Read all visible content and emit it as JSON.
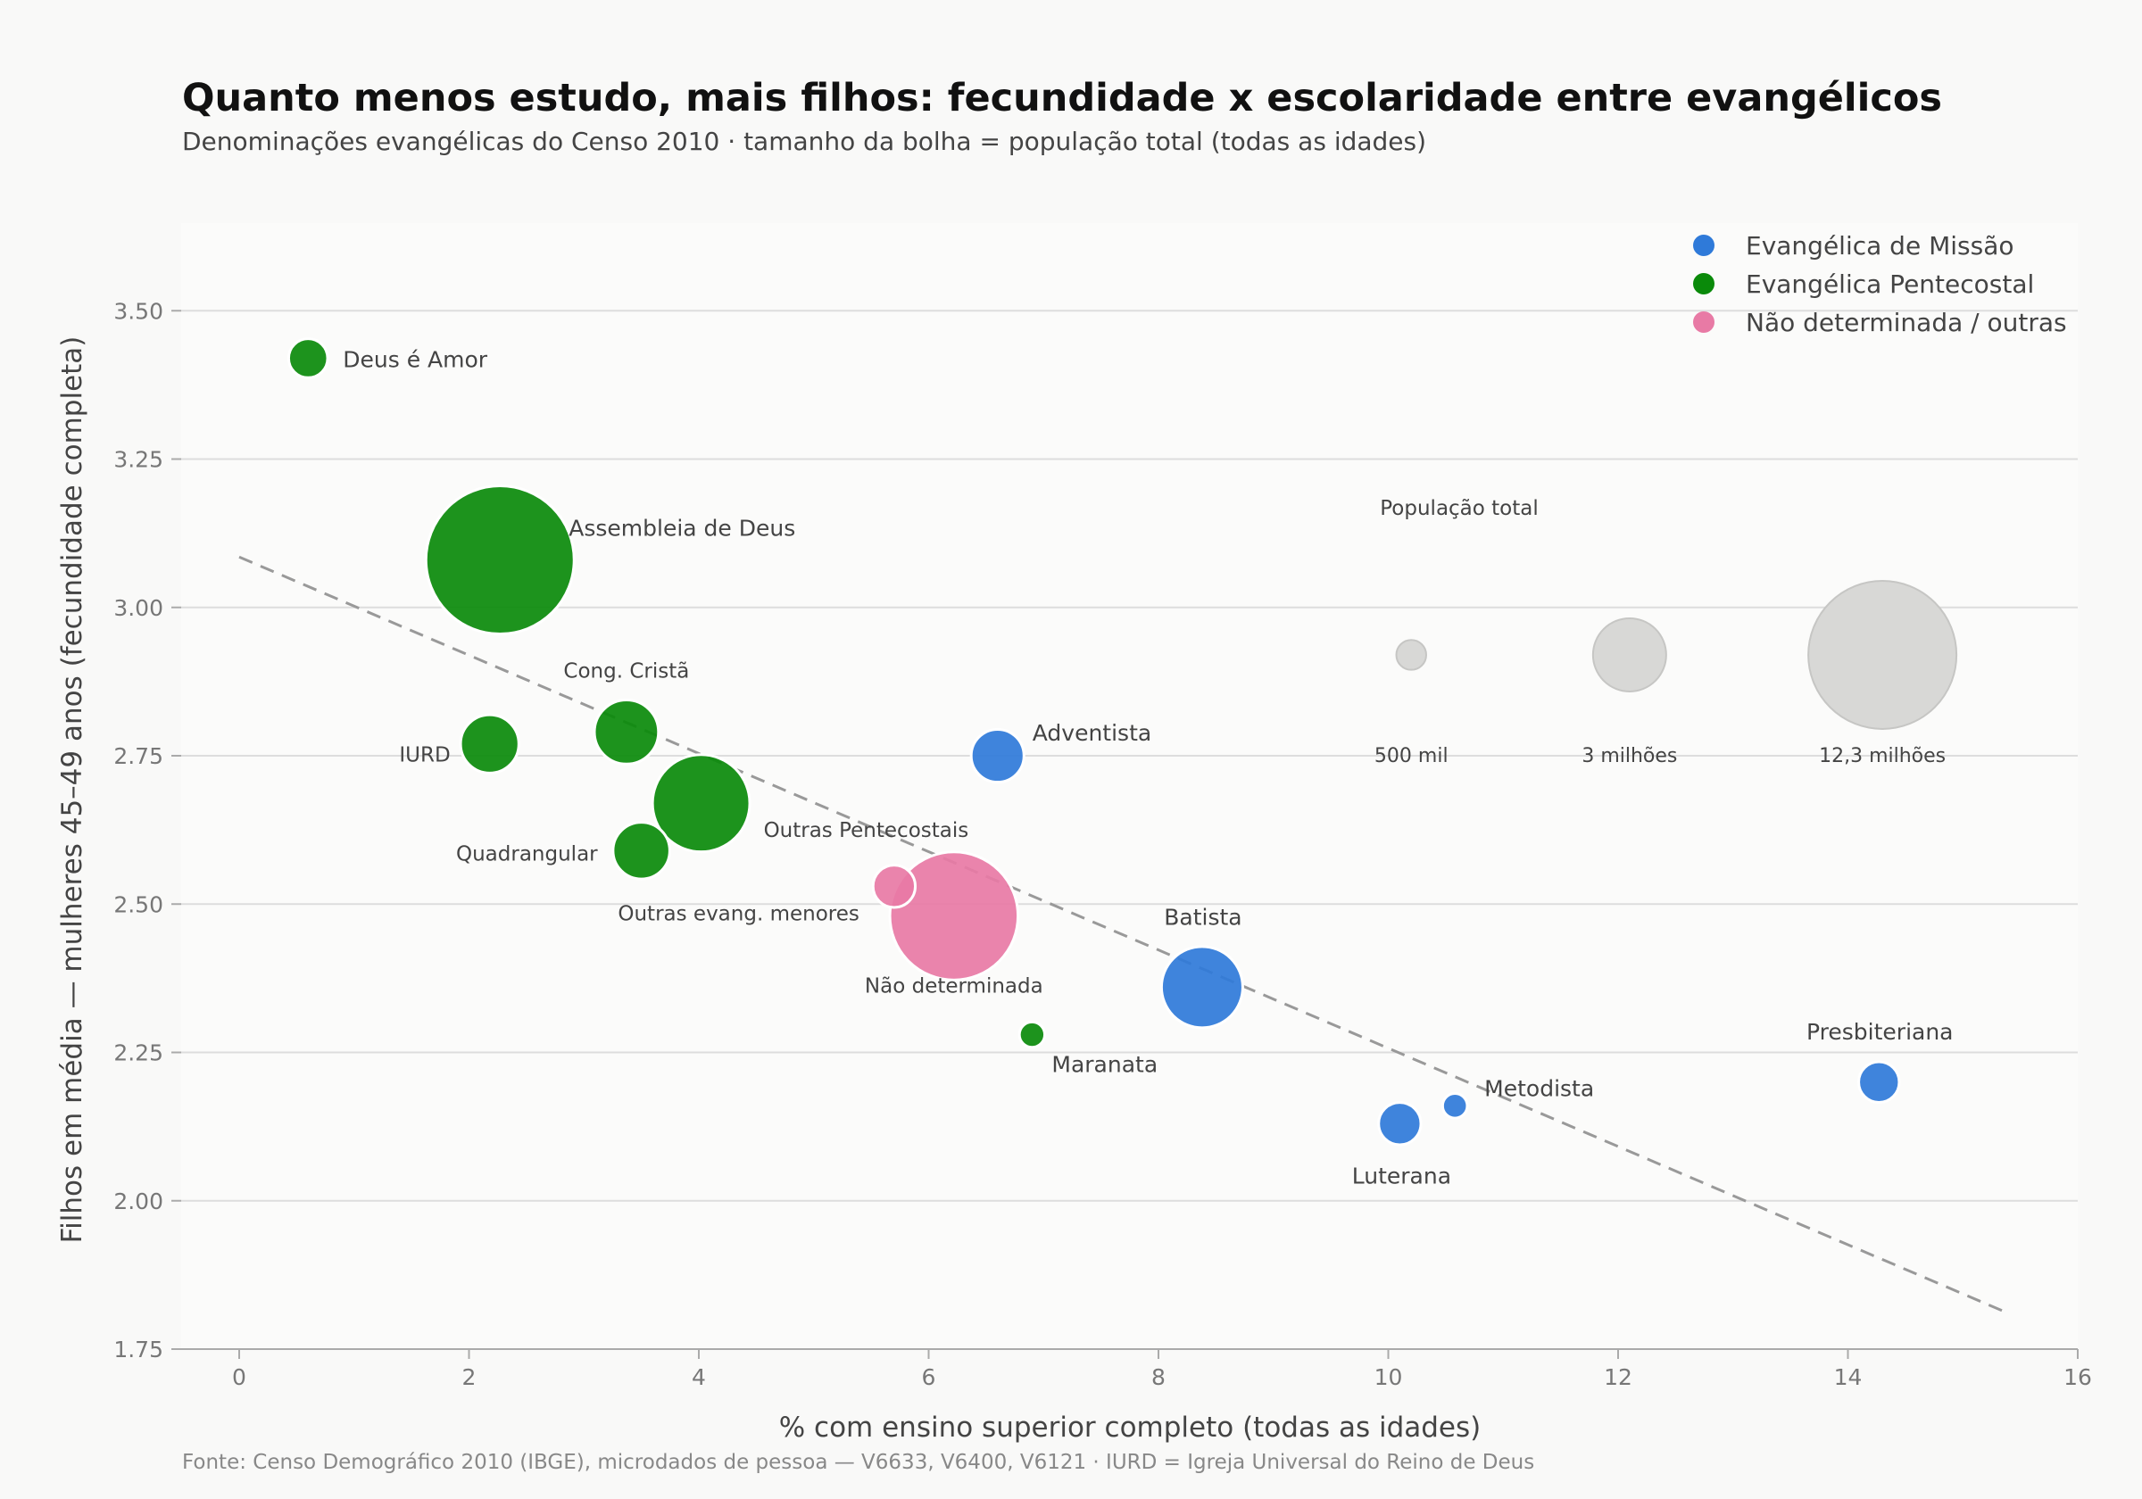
{
  "title": "Quanto menos estudo, mais filhos: fecundidade x escolaridade entre evangélicos",
  "subtitle": "Denominações evangélicas do Censo 2010 · tamanho da bolha = população total (todas as idades)",
  "source": "Fonte: Censo Demográfico 2010 (IBGE), microdados de pessoa — V6633, V6400, V6121 · IURD = Igreja Universal do Reino de Deus",
  "colors": {
    "missao": "#2f7ad9",
    "pentecostal": "#0a8a0a",
    "nao_det": "#e87aa5",
    "size_ref": "#d8d8d6",
    "trend": "#999999",
    "grid": "#dddddd",
    "plot_bg": "#fbfbfa",
    "page_bg": "#f9f9f8"
  },
  "chart_data": {
    "type": "scatter",
    "xlabel": "% com ensino superior completo (todas as idades)",
    "ylabel": "Filhos em média — mulheres 45–49 anos (fecundidade completa)",
    "xlim": [
      -0.5,
      16
    ],
    "ylim": [
      1.75,
      3.65
    ],
    "xticks": [
      0,
      2,
      4,
      6,
      8,
      10,
      12,
      14,
      16
    ],
    "xtick_labels": [
      "0",
      "2",
      "4",
      "6",
      "8",
      "10",
      "12",
      "14",
      "16"
    ],
    "yticks": [
      1.75,
      2.0,
      2.25,
      2.5,
      2.75,
      3.0,
      3.25,
      3.5
    ],
    "ytick_labels": [
      "1.75",
      "2.00",
      "2.25",
      "2.50",
      "2.75",
      "3.00",
      "3.25",
      "3.50"
    ],
    "grid": "horizontal",
    "legend": {
      "position": "top-right",
      "entries": [
        {
          "label": "Evangélica de Missão",
          "color": "#2f7ad9"
        },
        {
          "label": "Evangélica Pentecostal",
          "color": "#0a8a0a"
        },
        {
          "label": "Não determinada / outras",
          "color": "#e87aa5"
        }
      ]
    },
    "trendline": {
      "x": [
        0,
        15.4
      ],
      "y": [
        3.085,
        1.81
      ],
      "style": "dashed"
    },
    "points": [
      {
        "label": "Deus é Amor",
        "group": "pentecostal",
        "x": 0.6,
        "y": 3.42,
        "pop_millions": 0.85
      },
      {
        "label": "Assembleia de Deus",
        "group": "pentecostal",
        "x": 2.27,
        "y": 3.08,
        "pop_millions": 12.3
      },
      {
        "label": "IURD",
        "group": "pentecostal",
        "x": 2.18,
        "y": 2.77,
        "pop_millions": 1.9
      },
      {
        "label": "Cong. Cristã",
        "group": "pentecostal",
        "x": 3.37,
        "y": 2.79,
        "pop_millions": 2.3
      },
      {
        "label": "Outras Pentecostais",
        "group": "pentecostal",
        "x": 4.02,
        "y": 2.67,
        "pop_millions": 5.3
      },
      {
        "label": "Quadrangular",
        "group": "pentecostal",
        "x": 3.5,
        "y": 2.59,
        "pop_millions": 1.8
      },
      {
        "label": "Outras evang. menores",
        "group": "nao_det",
        "x": 5.7,
        "y": 2.53,
        "pop_millions": 1.0
      },
      {
        "label": "Não determinada",
        "group": "nao_det",
        "x": 6.22,
        "y": 2.48,
        "pop_millions": 9.2
      },
      {
        "label": "Maranata",
        "group": "pentecostal",
        "x": 6.9,
        "y": 2.28,
        "pop_millions": 0.36
      },
      {
        "label": "Adventista",
        "group": "missao",
        "x": 6.6,
        "y": 2.75,
        "pop_millions": 1.56
      },
      {
        "label": "Batista",
        "group": "missao",
        "x": 8.38,
        "y": 2.36,
        "pop_millions": 3.7
      },
      {
        "label": "Luterana",
        "group": "missao",
        "x": 10.1,
        "y": 2.13,
        "pop_millions": 1.0
      },
      {
        "label": "Metodista",
        "group": "missao",
        "x": 10.58,
        "y": 2.16,
        "pop_millions": 0.34
      },
      {
        "label": "Presbiteriana",
        "group": "missao",
        "x": 14.27,
        "y": 2.2,
        "pop_millions": 0.92
      }
    ],
    "size_legend": {
      "title": "População total",
      "items": [
        {
          "label": "500 mil",
          "pop_millions": 0.5,
          "x": 10.2
        },
        {
          "label": "3 milhões",
          "pop_millions": 3.0,
          "x": 12.1
        },
        {
          "label": "12,3 milhões",
          "pop_millions": 12.3,
          "x": 14.3
        }
      ],
      "y": 2.92
    }
  }
}
